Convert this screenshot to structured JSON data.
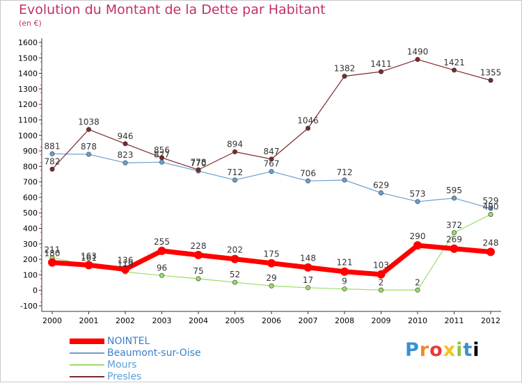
{
  "chart_data": {
    "type": "line",
    "title": "Evolution du Montant de la Dette par Habitant",
    "subtitle": "(en €)",
    "x": [
      "2000",
      "2001",
      "2002",
      "2003",
      "2004",
      "2005",
      "2006",
      "2007",
      "2008",
      "2009",
      "2010",
      "2011",
      "2012"
    ],
    "ylim": [
      -100,
      1600
    ],
    "yticks": [
      "-100",
      "0",
      "100",
      "200",
      "300",
      "400",
      "500",
      "600",
      "700",
      "800",
      "900",
      "1000",
      "1100",
      "1200",
      "1300",
      "1400",
      "1500",
      "1600"
    ],
    "grid": false,
    "legend_position": "bottom-left",
    "series": [
      {
        "name": "NOINTEL",
        "color": "#ff0000",
        "values": [
          180,
          163,
          136,
          255,
          228,
          202,
          175,
          148,
          121,
          103,
          290,
          269,
          248
        ],
        "labels": [
          "180",
          "163",
          "136",
          "255",
          "228",
          "202",
          "175",
          "148",
          "121",
          "103",
          "290",
          "269",
          "248"
        ]
      },
      {
        "name": "Beaumont-sur-Oise",
        "color": "#6a9fd0",
        "values": [
          881,
          878,
          823,
          827,
          770,
          712,
          767,
          706,
          712,
          629,
          573,
          595,
          529
        ],
        "labels": [
          "881",
          "878",
          "823",
          "827",
          "770",
          "712",
          "767",
          "706",
          "712",
          "629",
          "573",
          "595",
          "529"
        ]
      },
      {
        "name": "Mours",
        "color": "#99dd66",
        "values": [
          211,
          161,
          119,
          96,
          75,
          52,
          29,
          17,
          9,
          2,
          2,
          372,
          490
        ],
        "labels": [
          "211",
          "161",
          "119",
          "96",
          "75",
          "52",
          "29",
          "17",
          "9",
          "2",
          "2",
          "372",
          "490"
        ]
      },
      {
        "name": "Presles",
        "color": "#7a2a2a",
        "values": [
          782,
          1038,
          946,
          856,
          778,
          894,
          847,
          1046,
          1382,
          1411,
          1490,
          1421,
          1355
        ],
        "labels": [
          "782",
          "1038",
          "946",
          "856",
          "778",
          "894",
          "847",
          "1046",
          "1382",
          "1411",
          "1490",
          "1421",
          "1355"
        ]
      }
    ]
  },
  "logo": [
    "P",
    "r",
    "o",
    "x",
    "i",
    "t",
    "i"
  ]
}
